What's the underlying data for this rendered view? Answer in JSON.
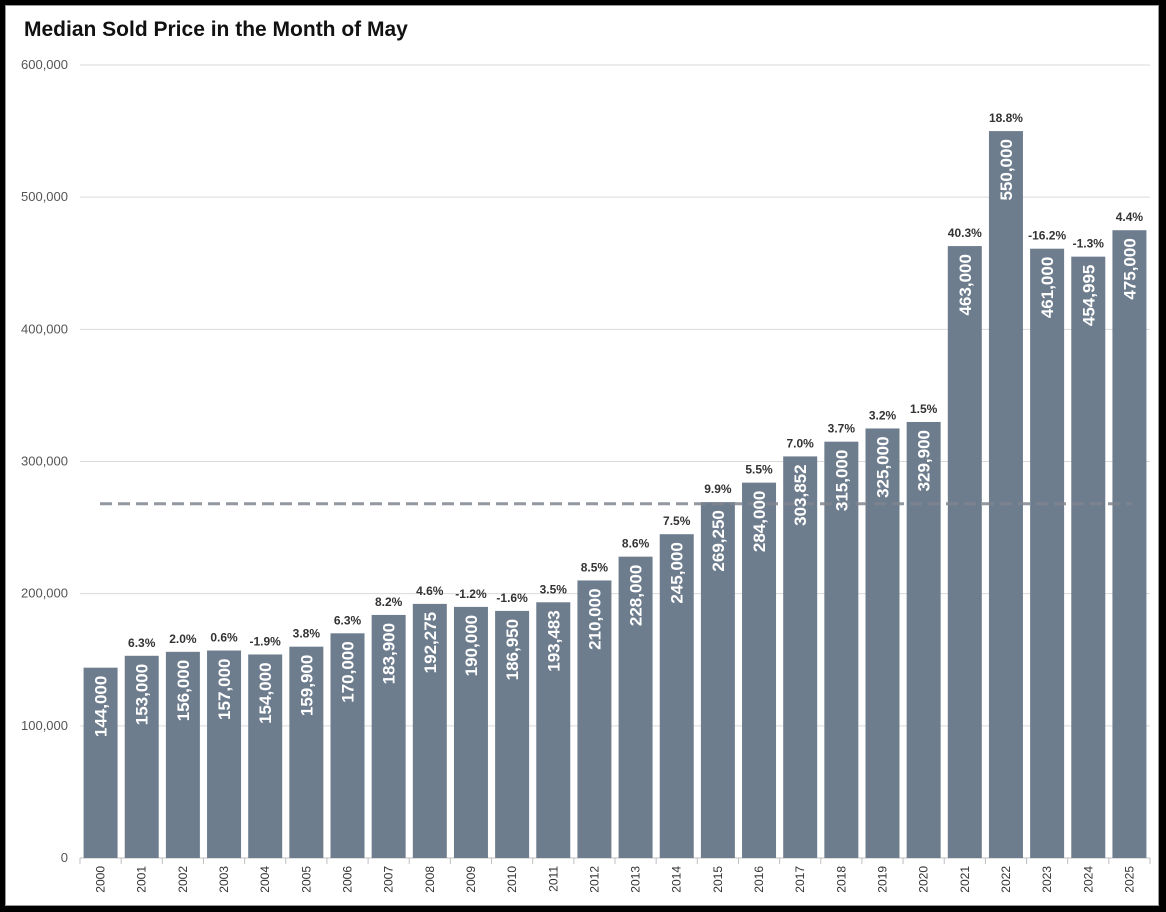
{
  "chart_data": {
    "type": "bar",
    "title": "Median Sold Price in the Month of May",
    "categories": [
      "2000",
      "2001",
      "2002",
      "2003",
      "2004",
      "2005",
      "2006",
      "2007",
      "2008",
      "2009",
      "2010",
      "2011",
      "2012",
      "2013",
      "2014",
      "2015",
      "2016",
      "2017",
      "2018",
      "2019",
      "2020",
      "2021",
      "2022",
      "2023",
      "2024",
      "2025"
    ],
    "values": [
      144000,
      153000,
      156000,
      157000,
      154000,
      159900,
      170000,
      183900,
      192275,
      190000,
      186950,
      193483,
      210000,
      228000,
      245000,
      269250,
      284000,
      303852,
      315000,
      325000,
      329900,
      463000,
      550000,
      461000,
      454995,
      475000
    ],
    "value_labels": [
      "144,000",
      "153,000",
      "156,000",
      "157,000",
      "154,000",
      "159,900",
      "170,000",
      "183,900",
      "192,275",
      "190,000",
      "186,950",
      "193,483",
      "210,000",
      "228,000",
      "245,000",
      "269,250",
      "284,000",
      "303,852",
      "315,000",
      "325,000",
      "329,900",
      "463,000",
      "550,000",
      "461,000",
      "454,995",
      "475,000"
    ],
    "pct_change_labels": [
      "",
      "6.3%",
      "2.0%",
      "0.6%",
      "-1.9%",
      "3.8%",
      "6.3%",
      "8.2%",
      "4.6%",
      "-1.2%",
      "-1.6%",
      "3.5%",
      "8.5%",
      "8.6%",
      "7.5%",
      "9.9%",
      "5.5%",
      "7.0%",
      "3.7%",
      "3.2%",
      "1.5%",
      "40.3%",
      "18.8%",
      "-16.2%",
      "-1.3%",
      "4.4%"
    ],
    "ylim": [
      0,
      600000
    ],
    "y_ticks": [
      0,
      100000,
      200000,
      300000,
      400000,
      500000,
      600000
    ],
    "y_tick_labels": [
      "0",
      "100,000",
      "200,000",
      "300,000",
      "400,000",
      "500,000",
      "600,000"
    ],
    "reference_line": {
      "value": 268000,
      "style": "dashed"
    },
    "grid": true,
    "legend": "none",
    "xlabel": "",
    "ylabel": ""
  },
  "colors": {
    "bar": "#6e7d8e",
    "grid": "#d9d9d9",
    "reference_line": "#7f8590"
  }
}
